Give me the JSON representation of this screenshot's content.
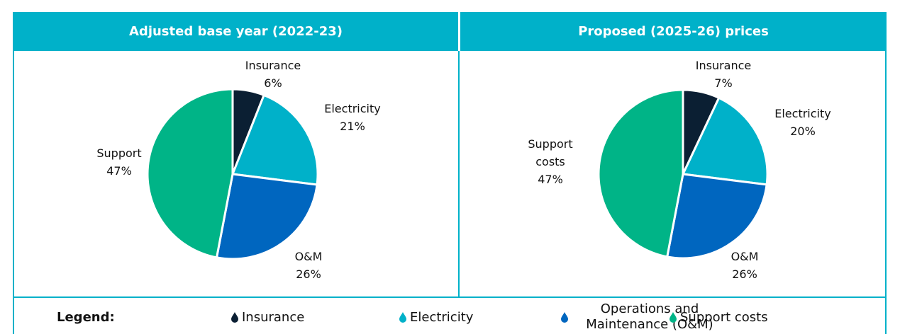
{
  "chart_data": [
    {
      "type": "pie",
      "title": "Adjusted base year (2022-23)",
      "categories": [
        "Insurance",
        "Electricity",
        "O&M",
        "Support"
      ],
      "values": [
        6,
        21,
        26,
        47
      ],
      "value_labels": [
        "6%",
        "21%",
        "26%",
        "47%"
      ],
      "colors": [
        "#0b1f33",
        "#00b1c9",
        "#0066bf",
        "#00b487"
      ]
    },
    {
      "type": "pie",
      "title": "Proposed (2025-26) prices",
      "categories": [
        "Insurance",
        "Electricity",
        "O&M",
        "Support costs"
      ],
      "values": [
        7,
        20,
        26,
        47
      ],
      "value_labels": [
        "7%",
        "20%",
        "26%",
        "47%"
      ],
      "colors": [
        "#0b1f33",
        "#00b1c9",
        "#0066bf",
        "#00b487"
      ]
    }
  ],
  "legend": {
    "title": "Legend:",
    "items": [
      "Insurance",
      "Electricity",
      "Operations and Maintenance (O&M)",
      "Support costs"
    ]
  }
}
